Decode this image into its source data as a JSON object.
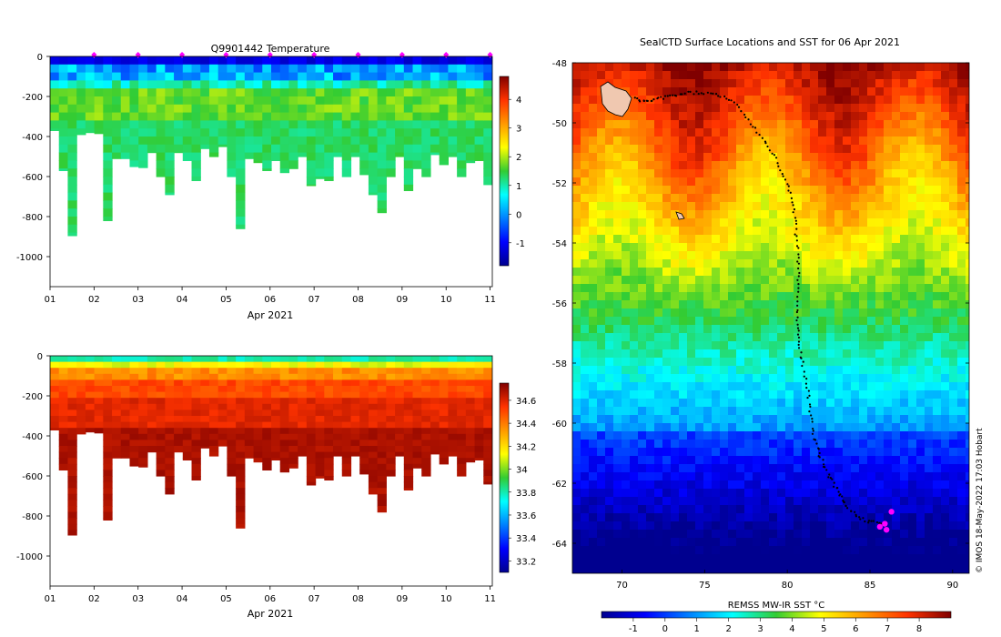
{
  "chart_data": [
    {
      "type": "heatmap",
      "title": "Q9901442  Temperature",
      "xlabel": "Apr 2021",
      "ylabel": "",
      "x_ticks": [
        "01",
        "02",
        "03",
        "04",
        "05",
        "06",
        "07",
        "08",
        "09",
        "10",
        "11"
      ],
      "x_range": [
        1,
        11.05
      ],
      "y_ticks": [
        0,
        -200,
        -400,
        -600,
        -800,
        -1000
      ],
      "y_range": [
        -1150,
        0
      ],
      "colorbar": {
        "ticks": [
          4,
          3,
          2,
          1,
          0,
          -1
        ],
        "range": [
          -1.8,
          4.8
        ],
        "colormap": "jet"
      },
      "profile_max_depth_m": [
        370,
        570,
        895,
        390,
        380,
        385,
        820,
        510,
        510,
        550,
        555,
        480,
        600,
        690,
        480,
        520,
        620,
        460,
        500,
        450,
        600,
        860,
        510,
        530,
        570,
        520,
        580,
        560,
        500,
        645,
        610,
        620,
        500,
        600,
        500,
        590,
        690,
        780,
        600,
        500,
        670,
        560,
        600,
        490,
        540,
        500,
        600,
        530,
        520,
        640
      ],
      "profile_max_depth_note": "estimated bottom depth (m) of each dive profile, left to right",
      "surface_markers_day": [
        2,
        3,
        4,
        5,
        6,
        7,
        8,
        9,
        10,
        11
      ],
      "marker_color": "#ff00ff"
    },
    {
      "type": "heatmap",
      "title": "",
      "xlabel": "Apr 2021",
      "ylabel": "",
      "x_ticks": [
        "01",
        "02",
        "03",
        "04",
        "05",
        "06",
        "07",
        "08",
        "09",
        "10",
        "11"
      ],
      "x_range": [
        1,
        11.05
      ],
      "y_ticks": [
        0,
        -200,
        -400,
        -600,
        -800,
        -1000
      ],
      "y_range": [
        -1150,
        0
      ],
      "colorbar": {
        "ticks": [
          34.6,
          34.4,
          34.2,
          34,
          33.8,
          33.6,
          33.4,
          33.2
        ],
        "range": [
          33.1,
          34.75
        ],
        "colormap": "jet"
      }
    },
    {
      "type": "heatmap",
      "title": "SealCTD Surface Locations and SST for 06 Apr 2021",
      "xlabel": "",
      "ylabel": "",
      "x_ticks": [
        70,
        75,
        80,
        85,
        90
      ],
      "x_range": [
        67,
        91
      ],
      "y_ticks": [
        -48,
        -50,
        -52,
        -54,
        -56,
        -58,
        -60,
        -62,
        -64
      ],
      "y_range": [
        -65,
        -48
      ],
      "colorbar": {
        "label": "REMSS MW-IR SST °C",
        "ticks": [
          -1,
          0,
          1,
          2,
          3,
          4,
          5,
          6,
          7,
          8
        ],
        "range": [
          -2,
          9
        ],
        "colormap": "jet"
      },
      "track_lon_lat": [
        [
          70.8,
          -49.2
        ],
        [
          71.5,
          -49.3
        ],
        [
          72.2,
          -49.2
        ],
        [
          73.0,
          -49.1
        ],
        [
          74.0,
          -49.0
        ],
        [
          75.0,
          -49.0
        ],
        [
          76.0,
          -49.1
        ],
        [
          77.0,
          -49.4
        ],
        [
          77.8,
          -50.0
        ],
        [
          78.6,
          -50.6
        ],
        [
          79.3,
          -51.2
        ],
        [
          79.9,
          -51.9
        ],
        [
          80.3,
          -52.6
        ],
        [
          80.5,
          -53.4
        ],
        [
          80.6,
          -54.2
        ],
        [
          80.7,
          -55.0
        ],
        [
          80.6,
          -55.8
        ],
        [
          80.6,
          -56.6
        ],
        [
          80.7,
          -57.3
        ],
        [
          80.9,
          -58.0
        ],
        [
          81.2,
          -58.8
        ],
        [
          81.4,
          -59.6
        ],
        [
          81.6,
          -60.4
        ],
        [
          81.9,
          -61.0
        ],
        [
          82.3,
          -61.5
        ],
        [
          82.8,
          -62.0
        ],
        [
          83.2,
          -62.4
        ],
        [
          83.6,
          -62.8
        ],
        [
          84.2,
          -63.1
        ],
        [
          85.0,
          -63.3
        ],
        [
          85.8,
          -63.3
        ]
      ],
      "seal_positions_lon_lat": [
        [
          85.6,
          -63.45
        ],
        [
          86.0,
          -63.55
        ],
        [
          86.3,
          -62.95
        ],
        [
          85.9,
          -63.35
        ]
      ],
      "seal_marker_color": "#ff00ff"
    }
  ],
  "credit": "© IMOS 18-May-2022 17:03 Hobart"
}
